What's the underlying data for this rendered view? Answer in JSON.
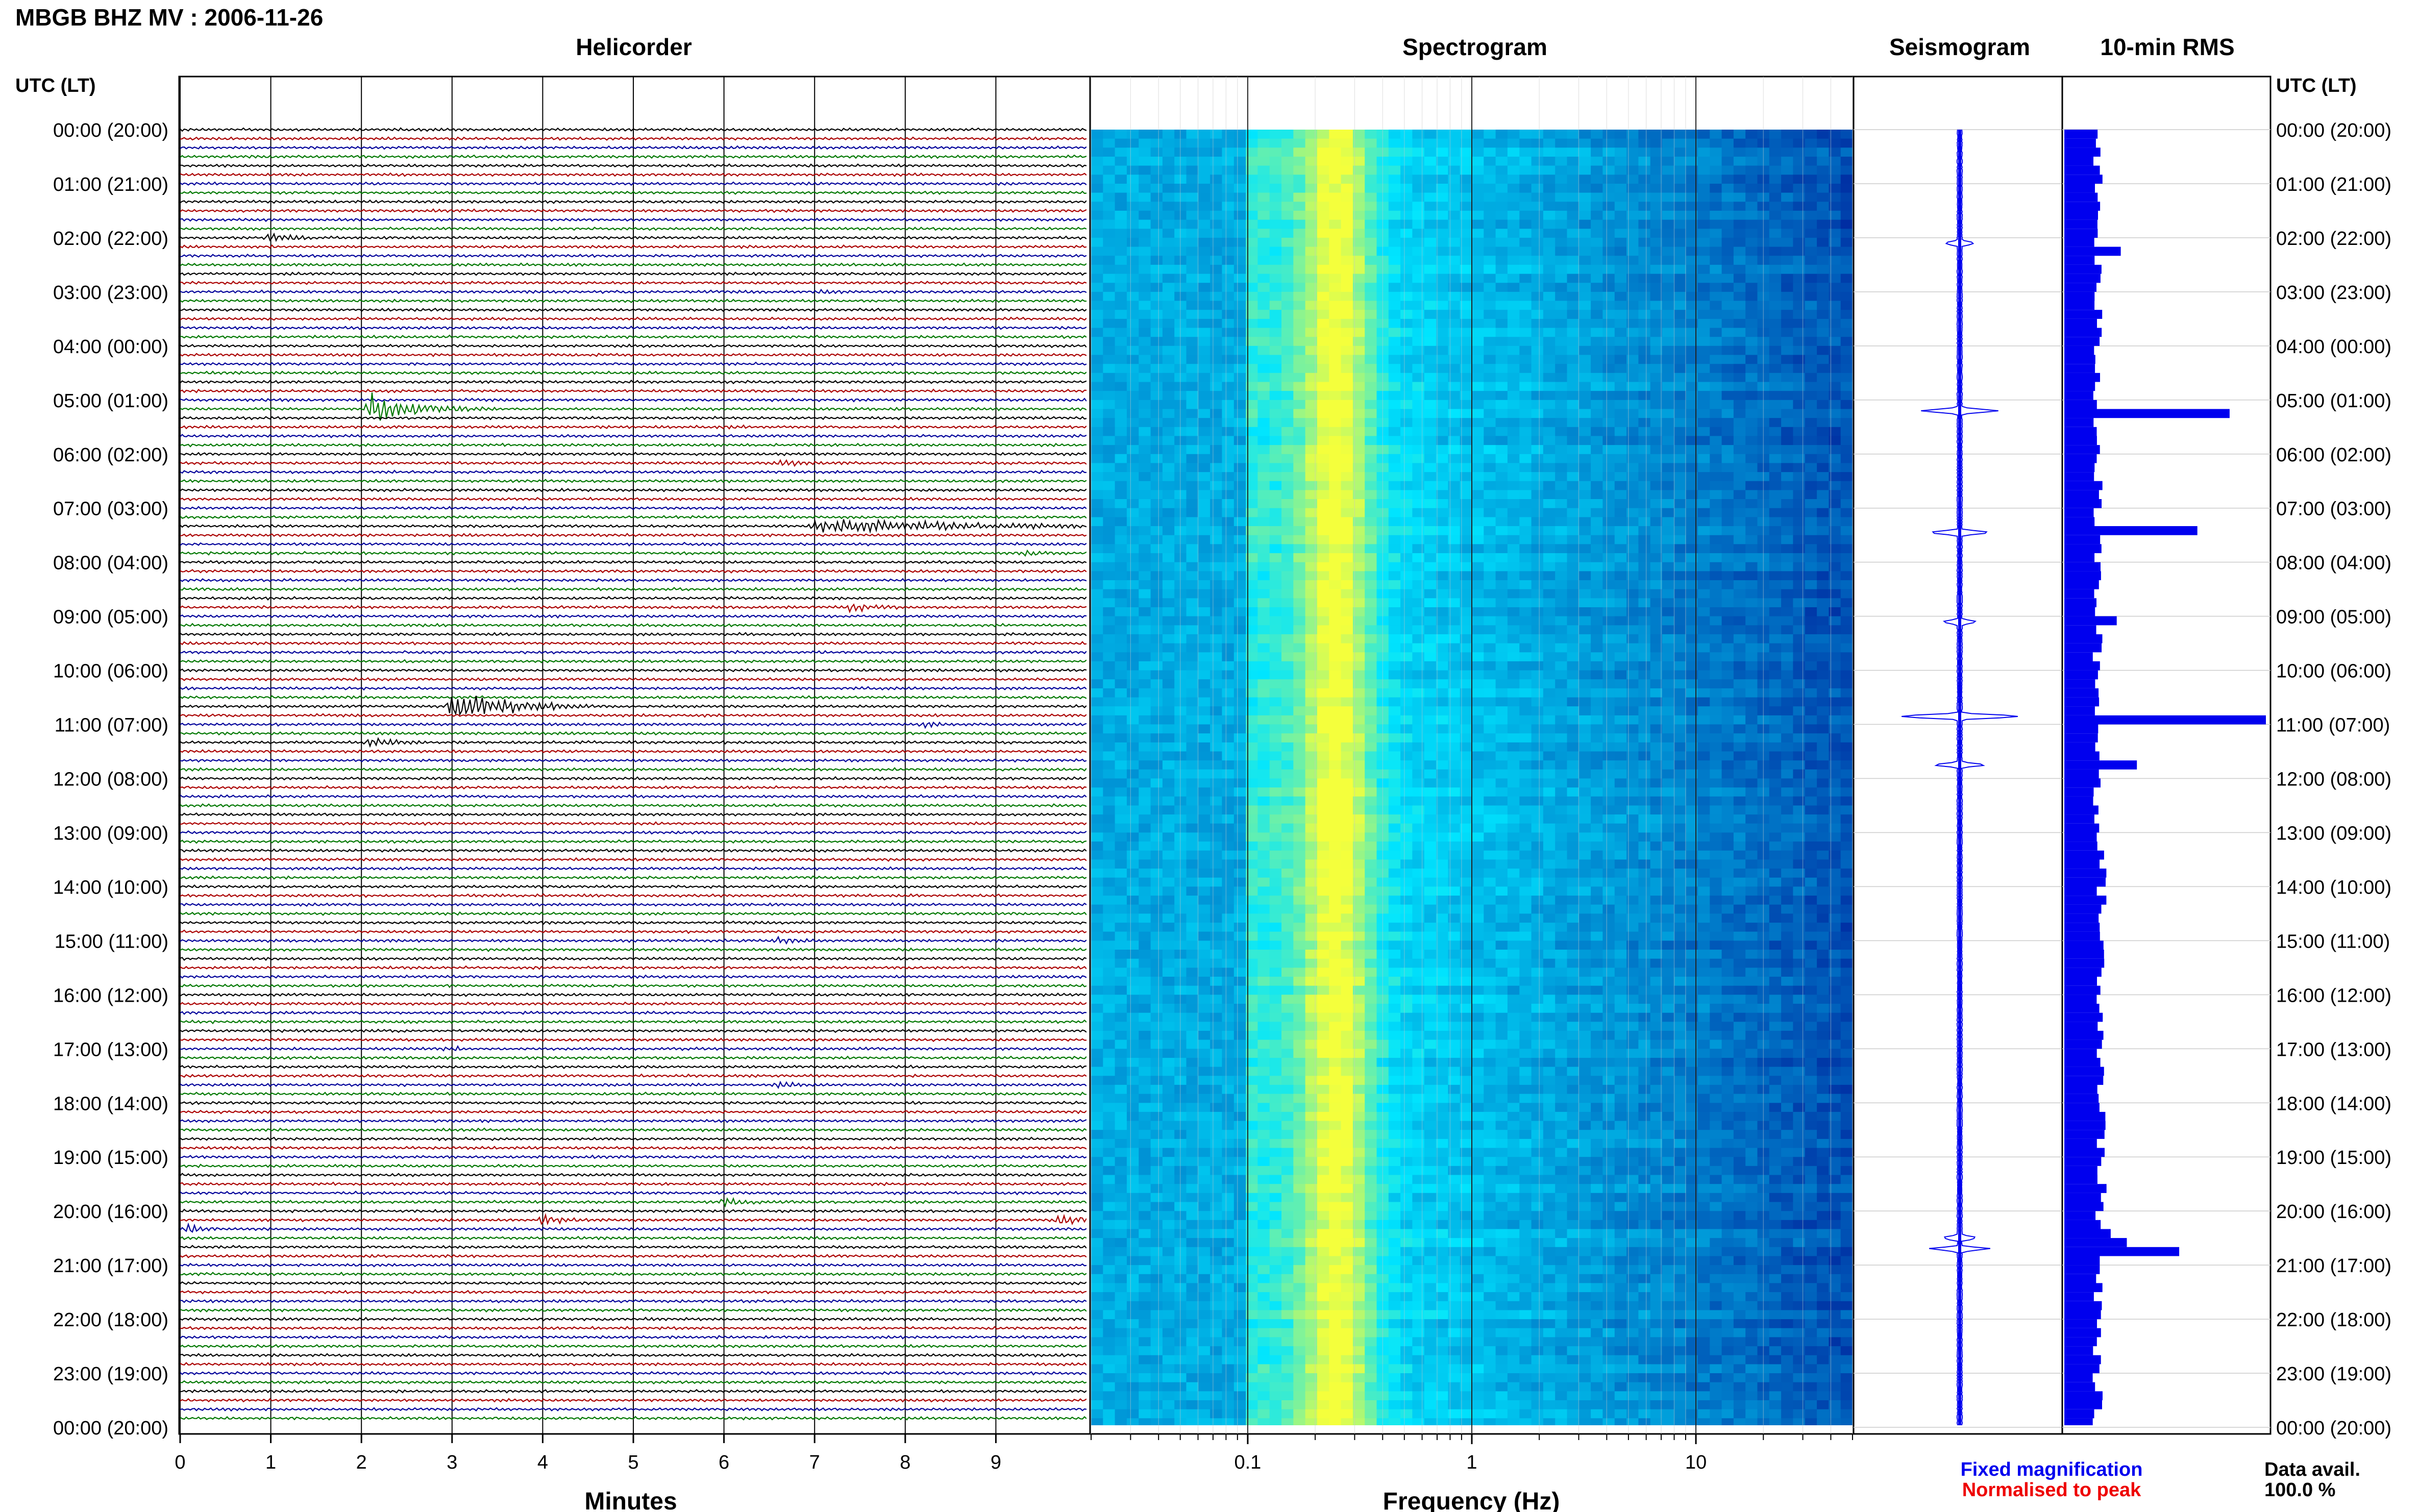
{
  "header": {
    "station_title": "MBGB BHZ MV : 2006-11-26",
    "utc_label_left": "UTC (LT)",
    "utc_label_right": "UTC (LT)"
  },
  "panels": {
    "helicorder": "Helicorder",
    "spectrogram": "Spectrogram",
    "seismogram": "Seismogram",
    "rms": "10-min RMS"
  },
  "legend": {
    "fixed": "Fixed magnification",
    "normalised": "Normalised to peak",
    "data_avail_label": "Data avail.",
    "data_avail_value": "100.0 %"
  },
  "colors": {
    "trace_black": "#000000",
    "trace_red": "#aa0000",
    "trace_blue": "#000099",
    "trace_green": "#007700",
    "rms_bar": "#0000ee",
    "fixed_text": "#0000ee",
    "normalised_text": "#ee0000",
    "spec_low": "#00008b",
    "spec_mid": "#00e5ff",
    "spec_high": "#f4ff3c"
  },
  "chart_data": [
    {
      "type": "line",
      "panel": "helicorder",
      "xlabel": "Minutes",
      "xlim": [
        0,
        10
      ],
      "xticks": [
        0,
        1,
        2,
        3,
        4,
        5,
        6,
        7,
        8,
        9
      ],
      "time_labels": [
        "00:00 (20:00)",
        "01:00 (21:00)",
        "02:00 (22:00)",
        "03:00 (23:00)",
        "04:00 (00:00)",
        "05:00 (01:00)",
        "06:00 (02:00)",
        "07:00 (03:00)",
        "08:00 (04:00)",
        "09:00 (05:00)",
        "10:00 (06:00)",
        "11:00 (07:00)",
        "12:00 (08:00)",
        "13:00 (09:00)",
        "14:00 (10:00)",
        "15:00 (11:00)",
        "16:00 (12:00)",
        "17:00 (13:00)",
        "18:00 (14:00)",
        "19:00 (15:00)",
        "20:00 (16:00)",
        "21:00 (17:00)",
        "22:00 (18:00)",
        "23:00 (19:00)",
        "00:00 (20:00)"
      ],
      "lines_per_hour": 6,
      "trace_color_cycle": [
        "black",
        "red",
        "blue",
        "green"
      ],
      "events": [
        {
          "line": 12,
          "minute": 1.0,
          "duration": 0.6,
          "amp": 0.45
        },
        {
          "line": 18,
          "minute": 7.1,
          "duration": 0.5,
          "amp": 0.2
        },
        {
          "line": 31,
          "minute": 2.1,
          "duration": 1.4,
          "amp": 1.4
        },
        {
          "line": 33,
          "minute": 6.0,
          "duration": 0.3,
          "amp": 0.2
        },
        {
          "line": 37,
          "minute": 6.6,
          "duration": 0.8,
          "amp": 0.3
        },
        {
          "line": 44,
          "minute": 7.0,
          "duration": 3.8,
          "amp": 0.9
        },
        {
          "line": 47,
          "minute": 9.3,
          "duration": 0.6,
          "amp": 0.25
        },
        {
          "line": 53,
          "minute": 7.4,
          "duration": 0.6,
          "amp": 0.45
        },
        {
          "line": 64,
          "minute": 3.0,
          "duration": 1.6,
          "amp": 1.9
        },
        {
          "line": 66,
          "minute": 8.2,
          "duration": 0.6,
          "amp": 0.3
        },
        {
          "line": 68,
          "minute": 2.1,
          "duration": 0.6,
          "amp": 0.5
        },
        {
          "line": 90,
          "minute": 6.6,
          "duration": 0.5,
          "amp": 0.35
        },
        {
          "line": 102,
          "minute": 2.9,
          "duration": 0.4,
          "amp": 0.35
        },
        {
          "line": 106,
          "minute": 6.6,
          "duration": 0.6,
          "amp": 0.35
        },
        {
          "line": 119,
          "minute": 6.0,
          "duration": 0.9,
          "amp": 0.4
        },
        {
          "line": 121,
          "minute": 4.0,
          "duration": 0.6,
          "amp": 0.6
        },
        {
          "line": 121,
          "minute": 9.7,
          "duration": 0.5,
          "amp": 0.9
        },
        {
          "line": 122,
          "minute": 0.1,
          "duration": 0.5,
          "amp": 0.45
        }
      ]
    },
    {
      "type": "heatmap",
      "panel": "spectrogram",
      "xlabel": "Frequency (Hz)",
      "xscale": "log",
      "xlim": [
        0.02,
        50
      ],
      "xtick_labels": [
        {
          "value": 0.1,
          "label": "0.1"
        },
        {
          "value": 1,
          "label": "1"
        },
        {
          "value": 10,
          "label": "10"
        }
      ],
      "dominant_frequency_hz": 0.25,
      "time_span_hours": 24,
      "rows": 144
    },
    {
      "type": "line",
      "panel": "seismogram",
      "time_span_hours": 24,
      "spikes": [
        {
          "hour": 2.1,
          "amp": 0.15
        },
        {
          "hour": 5.2,
          "amp": 0.55
        },
        {
          "hour": 7.45,
          "amp": 0.36
        },
        {
          "hour": 9.1,
          "amp": 0.18
        },
        {
          "hour": 10.85,
          "amp": 0.85
        },
        {
          "hour": 11.75,
          "amp": 0.25
        },
        {
          "hour": 20.5,
          "amp": 0.2
        },
        {
          "hour": 20.7,
          "amp": 0.35
        }
      ]
    },
    {
      "type": "bar",
      "panel": "rms",
      "bin_minutes": 10,
      "time_span_hours": 24,
      "baseline": 0.16,
      "peaks": [
        {
          "hour": 2.2,
          "value": 0.28
        },
        {
          "hour": 5.2,
          "value": 0.82
        },
        {
          "hour": 7.45,
          "value": 0.66
        },
        {
          "hour": 9.1,
          "value": 0.26
        },
        {
          "hour": 10.85,
          "value": 1.0
        },
        {
          "hour": 11.75,
          "value": 0.36
        },
        {
          "hour": 20.5,
          "value": 0.23
        },
        {
          "hour": 20.75,
          "value": 0.57
        },
        {
          "hour": 20.6,
          "value": 0.31
        }
      ]
    }
  ]
}
